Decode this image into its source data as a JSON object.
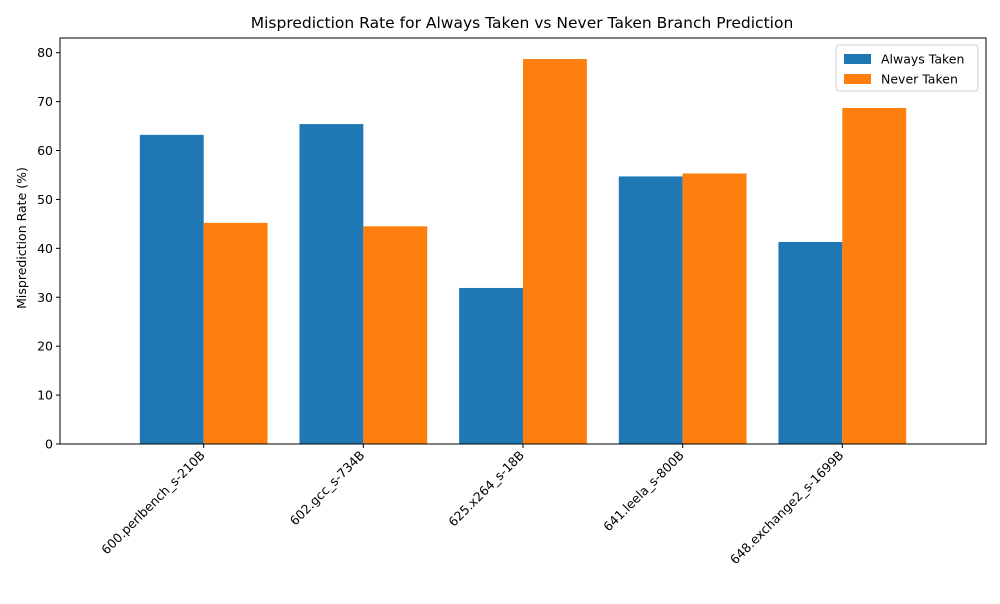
{
  "chart_data": {
    "type": "bar",
    "title": "Misprediction Rate for Always Taken vs Never Taken Branch Prediction",
    "xlabel": "",
    "ylabel": "Misprediction Rate (%)",
    "categories": [
      "600.perlbench_s-210B",
      "602.gcc_s-734B",
      "625.x264_s-18B",
      "641.leela_s-800B",
      "648.exchange2_s-1699B"
    ],
    "series": [
      {
        "name": "Always Taken",
        "color": "#1f77b4",
        "values": [
          63.2,
          65.4,
          31.9,
          54.7,
          41.3
        ]
      },
      {
        "name": "Never Taken",
        "color": "#ff7f0e",
        "values": [
          45.2,
          44.5,
          78.7,
          55.3,
          68.7
        ]
      }
    ],
    "ylim": [
      0,
      83
    ],
    "yticks": [
      0,
      10,
      20,
      30,
      40,
      50,
      60,
      70,
      80
    ],
    "grid": false,
    "legend_position": "top-right"
  }
}
